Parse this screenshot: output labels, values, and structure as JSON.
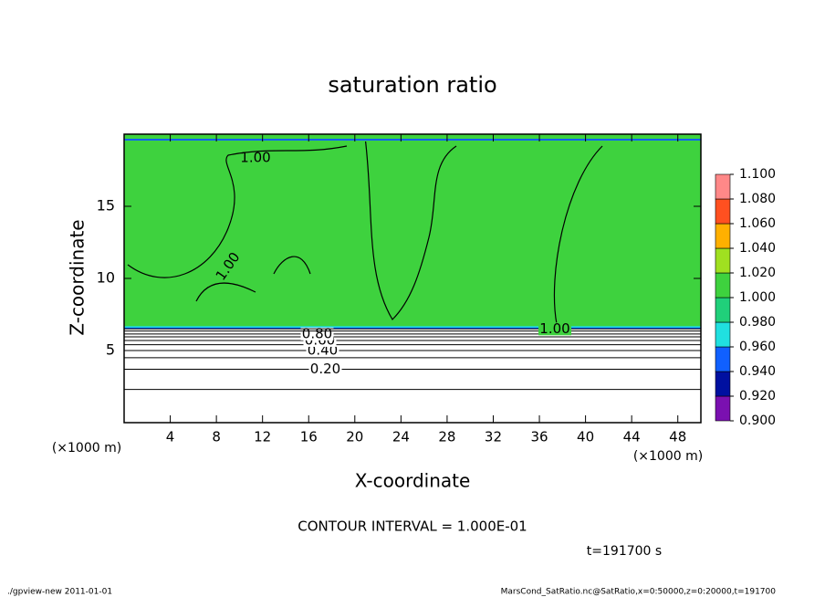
{
  "chart_data": {
    "type": "contour",
    "title": "saturation ratio",
    "xlabel": "X-coordinate",
    "ylabel": "Z-coordinate",
    "x_unit_left": "(×1000 m)",
    "x_unit_right": "(×1000 m)",
    "xlim": [
      0,
      50
    ],
    "ylim": [
      0,
      20
    ],
    "xticks": [
      4,
      8,
      12,
      16,
      20,
      24,
      28,
      32,
      36,
      40,
      44,
      48
    ],
    "yticks": [
      5,
      10,
      15
    ],
    "colorbar_ticks": [
      {
        "value": 0.9,
        "label": "0.900"
      },
      {
        "value": 0.92,
        "label": "0.920"
      },
      {
        "value": 0.94,
        "label": "0.940"
      },
      {
        "value": 0.96,
        "label": "0.960"
      },
      {
        "value": 0.98,
        "label": "0.980"
      },
      {
        "value": 1.0,
        "label": "1.000"
      },
      {
        "value": 1.02,
        "label": "1.020"
      },
      {
        "value": 1.04,
        "label": "1.040"
      },
      {
        "value": 1.06,
        "label": "1.060"
      },
      {
        "value": 1.08,
        "label": "1.080"
      },
      {
        "value": 1.1,
        "label": "1.100"
      }
    ],
    "colorbar_colors": [
      "#7a10b0",
      "#0010a0",
      "#1060ff",
      "#20e0e0",
      "#20d07a",
      "#3ed23e",
      "#a0e020",
      "#ffb000",
      "#ff5020",
      "#ff8888"
    ],
    "contours": [
      {
        "level": 0.1,
        "z": 2.3
      },
      {
        "level": {
          "value": 0.2,
          "label": "0.20"
        },
        "z": 3.7
      },
      {
        "level": 0.3,
        "z": 4.5
      },
      {
        "level": {
          "value": 0.4,
          "label": "0.40"
        },
        "z": 5.0
      },
      {
        "level": 0.5,
        "z": 5.4
      },
      {
        "level": {
          "value": 0.6,
          "label": "0.60"
        },
        "z": 5.7
      },
      {
        "level": 0.7,
        "z": 5.95
      },
      {
        "level": {
          "value": 0.8,
          "label": "0.80"
        },
        "z": 6.15
      },
      {
        "level": 0.9,
        "z": 6.35
      },
      {
        "level": {
          "value": 1.0,
          "label": "1.00"
        },
        "z": 6.5
      }
    ],
    "contour_interval": "CONTOUR INTERVAL = 1.000E-01",
    "time_label": "t=191700 s",
    "footer_left": "./gpview-new  2011-01-01",
    "footer_right": "MarsCond_SatRatio.nc@SatRatio,x=0:50000,z=0:20000,t=191700"
  }
}
